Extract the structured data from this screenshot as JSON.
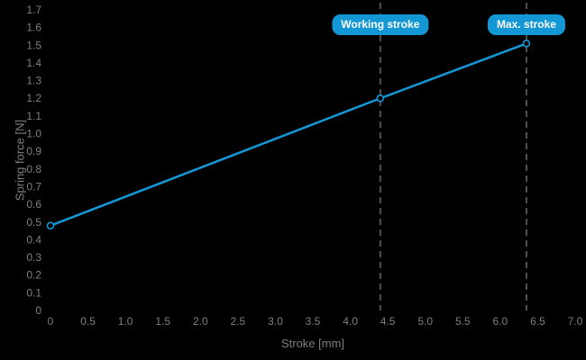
{
  "page": {
    "background": "#000000"
  },
  "chart_data": {
    "type": "line",
    "title": "",
    "xlabel": "Stroke [mm]",
    "ylabel": "Spring force [N]",
    "xlim": [
      0,
      7.0
    ],
    "ylim": [
      0,
      1.7
    ],
    "grid": false,
    "legend": "none",
    "x_tick_labels": [
      "0",
      "0.5",
      "1.0",
      "1.5",
      "2.0",
      "2.5",
      "3.0",
      "3.5",
      "4.0",
      "4.5",
      "5.0",
      "5.5",
      "6.0",
      "6.5",
      "7.0"
    ],
    "y_tick_labels": [
      "0",
      "0.1",
      "0.2",
      "0.3",
      "0.4",
      "0.5",
      "0.6",
      "0.7",
      "0.8",
      "0.9",
      "1.0",
      "1.1",
      "1.2",
      "1.3",
      "1.4",
      "1.5",
      "1.6",
      "1.7"
    ],
    "series": [
      {
        "name": "spring-force-curve",
        "x": [
          0,
          4.4,
          6.35
        ],
        "y": [
          0.48,
          1.2,
          1.51
        ],
        "marker": "circle",
        "color": "#1397d5"
      }
    ],
    "annotations": [
      {
        "label": "Working stroke",
        "x": 4.4
      },
      {
        "label": "Max. stroke",
        "x": 6.35
      }
    ],
    "colors": {
      "accent": "#1397d5",
      "badge_background": "#1397d5",
      "badge_text": "#ffffff",
      "tick_label": "#7f7f7f",
      "axis_label": "#7f7f7f",
      "dashed_line": "#515151",
      "background": "#000000"
    }
  }
}
